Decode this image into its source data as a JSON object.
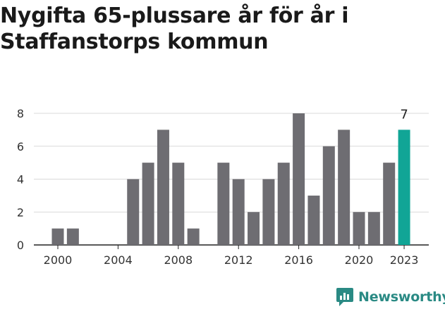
{
  "title": "Nygifta 65-plussare år för år i Staffanstorps kommun",
  "brand": {
    "name": "Newsworthy",
    "icon": "newsworthy-logo-icon",
    "color": "#2a8a84"
  },
  "chart_data": {
    "type": "bar",
    "title": "Nygifta 65-plussare år för år i Staffanstorps kommun",
    "xlabel": "",
    "ylabel": "",
    "categories": [
      2000,
      2001,
      2002,
      2003,
      2004,
      2005,
      2006,
      2007,
      2008,
      2009,
      2010,
      2011,
      2012,
      2013,
      2014,
      2015,
      2016,
      2017,
      2018,
      2019,
      2020,
      2021,
      2022,
      2023
    ],
    "values": [
      1,
      1,
      0,
      0,
      0,
      4,
      5,
      7,
      5,
      1,
      0,
      5,
      4,
      2,
      4,
      5,
      8,
      3,
      6,
      7,
      2,
      2,
      5,
      7
    ],
    "ylim": [
      0,
      8
    ],
    "yticks": [
      0,
      2,
      4,
      6,
      8
    ],
    "xticks": [
      2000,
      2004,
      2008,
      2012,
      2016,
      2020,
      2023
    ],
    "highlight": {
      "category": 2023,
      "label": "7"
    },
    "colors": {
      "bar": "#6e6d72",
      "highlight": "#11a596",
      "grid": "#d9d9d9",
      "axis": "#222222"
    },
    "grid": true
  }
}
